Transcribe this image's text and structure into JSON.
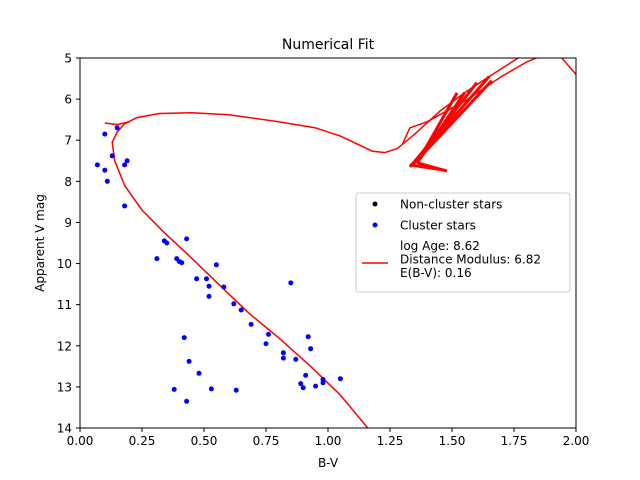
{
  "chart_data": {
    "type": "scatter",
    "title": "Numerical Fit",
    "xlabel": "B-V",
    "ylabel": "Apparent V mag",
    "xlim": [
      0.0,
      2.0
    ],
    "ylim": [
      14,
      5
    ],
    "y_inverted": true,
    "grid": false,
    "xticks": [
      "0.00",
      "0.25",
      "0.50",
      "0.75",
      "1.00",
      "1.25",
      "1.50",
      "1.75",
      "2.00"
    ],
    "yticks": [
      "5",
      "6",
      "7",
      "8",
      "9",
      "10",
      "11",
      "12",
      "13",
      "14"
    ],
    "legend_position": "center-right",
    "colors": {
      "cluster": "#0000ff",
      "noncluster": "#000000",
      "fit": "#ff0000"
    },
    "series": [
      {
        "name": "Non-cluster stars",
        "marker": "dot",
        "color": "#000000",
        "points": []
      },
      {
        "name": "Cluster stars",
        "marker": "dot",
        "color": "#0000ff",
        "points": [
          [
            0.07,
            7.6
          ],
          [
            0.1,
            6.85
          ],
          [
            0.13,
            7.38
          ],
          [
            0.15,
            6.7
          ],
          [
            0.1,
            7.73
          ],
          [
            0.11,
            8.0
          ],
          [
            0.18,
            7.6
          ],
          [
            0.19,
            7.5
          ],
          [
            0.18,
            8.6
          ],
          [
            0.31,
            9.88
          ],
          [
            0.34,
            9.45
          ],
          [
            0.35,
            9.5
          ],
          [
            0.39,
            9.88
          ],
          [
            0.4,
            9.95
          ],
          [
            0.41,
            9.98
          ],
          [
            0.43,
            9.4
          ],
          [
            0.47,
            10.37
          ],
          [
            0.51,
            10.37
          ],
          [
            0.52,
            10.55
          ],
          [
            0.52,
            10.8
          ],
          [
            0.55,
            10.03
          ],
          [
            0.58,
            10.57
          ],
          [
            0.62,
            10.98
          ],
          [
            0.65,
            11.13
          ],
          [
            0.69,
            11.48
          ],
          [
            0.75,
            11.95
          ],
          [
            0.76,
            11.72
          ],
          [
            0.82,
            12.17
          ],
          [
            0.82,
            12.3
          ],
          [
            0.85,
            10.47
          ],
          [
            0.87,
            12.33
          ],
          [
            0.89,
            12.92
          ],
          [
            0.9,
            13.02
          ],
          [
            0.91,
            12.72
          ],
          [
            0.92,
            11.78
          ],
          [
            0.93,
            12.07
          ],
          [
            0.95,
            12.98
          ],
          [
            0.98,
            12.9
          ],
          [
            0.98,
            12.82
          ],
          [
            1.05,
            12.8
          ],
          [
            0.42,
            11.8
          ],
          [
            0.44,
            12.38
          ],
          [
            0.48,
            12.67
          ],
          [
            0.38,
            13.06
          ],
          [
            0.43,
            13.35
          ],
          [
            0.53,
            13.05
          ],
          [
            0.63,
            13.08
          ]
        ]
      },
      {
        "name": "log Age: 8.62\nDistance Modulus: 6.82\nE(B-V): 0.16",
        "marker": "line",
        "color": "#ff0000",
        "curve": [
          [
            1.16,
            14.0
          ],
          [
            1.05,
            13.2
          ],
          [
            0.93,
            12.5
          ],
          [
            0.8,
            11.8
          ],
          [
            0.68,
            11.2
          ],
          [
            0.55,
            10.45
          ],
          [
            0.43,
            9.75
          ],
          [
            0.34,
            9.25
          ],
          [
            0.25,
            8.7
          ],
          [
            0.18,
            8.1
          ],
          [
            0.14,
            7.5
          ],
          [
            0.13,
            7.05
          ],
          [
            0.15,
            6.8
          ],
          [
            0.18,
            6.6
          ],
          [
            0.23,
            6.45
          ],
          [
            0.32,
            6.35
          ],
          [
            0.45,
            6.33
          ],
          [
            0.6,
            6.38
          ],
          [
            0.8,
            6.55
          ],
          [
            0.95,
            6.7
          ],
          [
            1.05,
            6.9
          ],
          [
            1.12,
            7.1
          ],
          [
            1.18,
            7.27
          ],
          [
            1.23,
            7.3
          ],
          [
            1.28,
            7.2
          ],
          [
            1.35,
            6.85
          ],
          [
            1.45,
            6.3
          ],
          [
            1.55,
            5.85
          ],
          [
            1.65,
            5.45
          ],
          [
            1.78,
            4.95
          ]
        ],
        "curve_start_hook": [
          [
            0.1,
            6.58
          ],
          [
            0.15,
            6.62
          ],
          [
            0.2,
            6.55
          ]
        ],
        "giant_branch_outer": [
          [
            1.3,
            7.1
          ],
          [
            1.33,
            6.7
          ],
          [
            1.4,
            6.55
          ],
          [
            1.55,
            6.05
          ],
          [
            1.7,
            5.45
          ],
          [
            1.8,
            5.1
          ],
          [
            1.88,
            4.9
          ]
        ],
        "giant_branch_upper": [
          [
            1.75,
            4.95
          ],
          [
            1.9,
            4.7
          ],
          [
            2.0,
            5.4
          ],
          [
            2.1,
            4.9
          ]
        ],
        "red_clump_fan": [
          [
            [
              1.52,
              5.85
            ],
            [
              1.36,
              7.55
            ]
          ],
          [
            [
              1.55,
              5.85
            ],
            [
              1.36,
              7.55
            ]
          ],
          [
            [
              1.6,
              5.6
            ],
            [
              1.34,
              7.6
            ]
          ],
          [
            [
              1.65,
              5.45
            ],
            [
              1.33,
              7.65
            ]
          ],
          [
            [
              1.66,
              5.55
            ],
            [
              1.35,
              7.55
            ]
          ],
          [
            [
              1.36,
              7.55
            ],
            [
              1.48,
              7.75
            ]
          ],
          [
            [
              1.33,
              7.6
            ],
            [
              1.46,
              7.72
            ]
          ]
        ]
      }
    ]
  }
}
